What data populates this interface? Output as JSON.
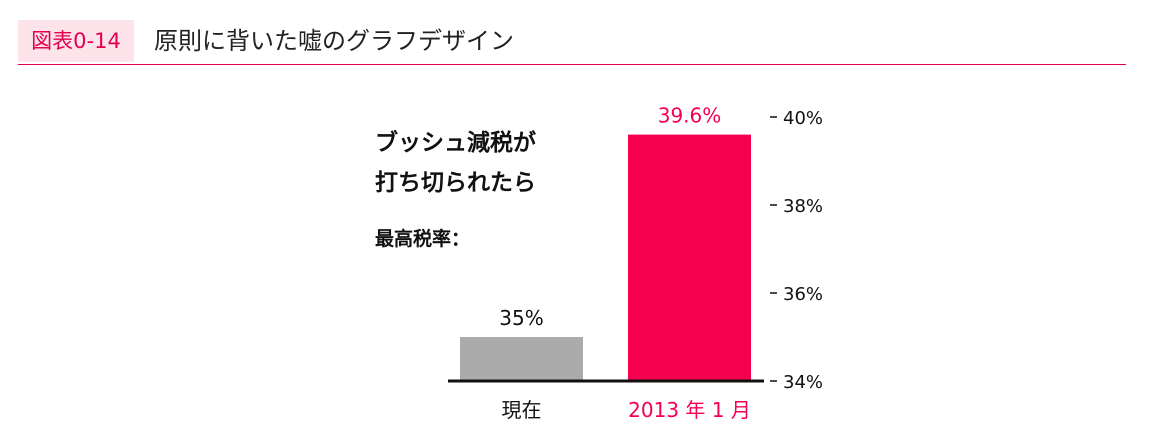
{
  "figure": {
    "label": "図表0-14",
    "title": "原則に背いた嘘のグラフデザイン"
  },
  "annotation": {
    "line1": "ブッシュ減税が",
    "line2": "打ち切られたら",
    "line3": "最高税率："
  },
  "colors": {
    "accent": "#f5004f",
    "gray_bar": "#ababab",
    "label_bg": "#fde3ea",
    "axis": "#111111"
  },
  "chart_data": {
    "type": "bar",
    "categories": [
      "現在",
      "2013 年 1 月"
    ],
    "values": [
      35,
      39.6
    ],
    "value_labels": [
      "35%",
      "39.6%"
    ],
    "ylim": [
      34,
      40
    ],
    "yticks": [
      40,
      38,
      36,
      34
    ],
    "ytick_labels": [
      "40%",
      "38%",
      "36%",
      "34%"
    ],
    "bar_colors": [
      "#ababab",
      "#f5004f"
    ],
    "label_colors": [
      "#111111",
      "#f5004f"
    ],
    "axis_side": "right",
    "grid": false
  }
}
